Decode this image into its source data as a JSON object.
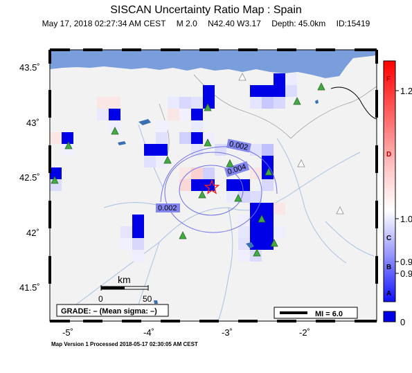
{
  "header": {
    "title": "SISCAN Uncertainty Ratio Map : Spain",
    "date": "May 17, 2018 02:27:34 AM CEST",
    "magnitude": "M 2.0",
    "location": "N42.40 W3.17",
    "depth": "Depth: 45.0km",
    "id": "ID:15419"
  },
  "axes": {
    "lat_labels": [
      "43.5˚",
      "43˚",
      "42.5˚",
      "42˚",
      "41.5˚"
    ],
    "lon_labels": [
      "-5˚",
      "-4˚",
      "-3˚",
      "-2˚"
    ]
  },
  "colorbar": {
    "grade_letters": [
      "F",
      "D",
      "C",
      "B",
      "A"
    ],
    "values": [
      "1.2",
      "1.0",
      "0.9",
      "0.9",
      "0"
    ]
  },
  "contours": [
    "0.002",
    "0.004",
    "0.002"
  ],
  "scalebar": {
    "title": "km",
    "start": "0",
    "end": "50"
  },
  "grade_box": "GRADE: – (Mean sigma: –)",
  "mi_legend": "MI = 6.0",
  "footer": "Map Version 1 Processed 2018-05-17 02:30:05 AM CEST",
  "colors": {
    "sea": "#7a9edc",
    "land": "#f2f2f2",
    "cell_blue": "#0000e6",
    "epicenter": "#ee2222",
    "station_active": "#44aa44"
  }
}
